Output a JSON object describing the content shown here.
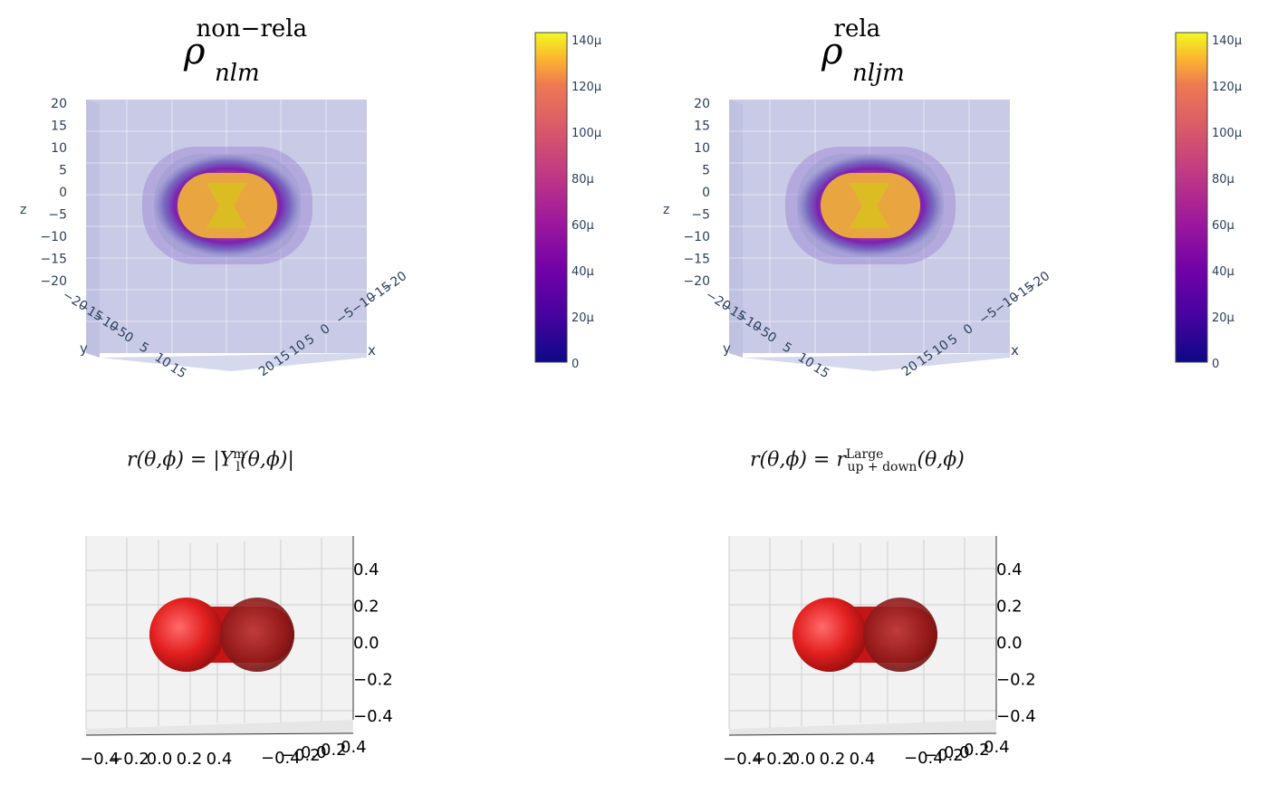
{
  "top_panels": [
    {
      "title_base": "ρ",
      "title_sup": "non−rela",
      "title_sub": "nlm",
      "formula": "r(θ,ϕ) = |Y",
      "formula_sup": "m",
      "formula_sub": "l",
      "formula_tail": "(θ,ϕ)|"
    },
    {
      "title_base": "ρ",
      "title_sup": "rela",
      "title_sub": "nljm",
      "formula": "r(θ,ϕ) = r",
      "formula_sup": "Large",
      "formula_sub": "up + down",
      "formula_tail": "(θ,ϕ)"
    }
  ],
  "chart_data": [
    {
      "type": "isosurface-3d",
      "title": "ρ^{non−rela}_{nlm}",
      "axes": {
        "x": {
          "label": "x",
          "ticks": [
            "−20",
            "−15",
            "−10",
            "−5",
            "0",
            "5",
            "10",
            "15",
            "20"
          ]
        },
        "y": {
          "label": "y",
          "ticks": [
            "−20",
            "−15",
            "−10",
            "−5",
            "0",
            "5",
            "10",
            "15"
          ]
        },
        "z": {
          "label": "z",
          "ticks": [
            "20",
            "15",
            "10",
            "5",
            "0",
            "−5",
            "−10",
            "−15",
            "−20"
          ],
          "range": [
            -20,
            20
          ]
        }
      },
      "colorbar": {
        "ticks": [
          "140μ",
          "120μ",
          "100μ",
          "80μ",
          "60μ",
          "40μ",
          "20μ",
          "0"
        ],
        "range": [
          0,
          0.00014
        ],
        "colorscale": "plasma"
      },
      "shape": "toroidal density with hourglass core"
    },
    {
      "type": "isosurface-3d",
      "title": "ρ^{rela}_{nljm}",
      "axes": {
        "x": {
          "label": "x",
          "ticks": [
            "−20",
            "−15",
            "−10",
            "−5",
            "0",
            "5",
            "10",
            "15",
            "20"
          ]
        },
        "y": {
          "label": "y",
          "ticks": [
            "−20",
            "−15",
            "−10",
            "−5",
            "0",
            "5",
            "10",
            "15"
          ]
        },
        "z": {
          "label": "z",
          "ticks": [
            "20",
            "15",
            "10",
            "5",
            "0",
            "−5",
            "−10",
            "−15",
            "−20"
          ],
          "range": [
            -20,
            20
          ]
        }
      },
      "colorbar": {
        "ticks": [
          "140μ",
          "120μ",
          "100μ",
          "80μ",
          "60μ",
          "40μ",
          "20μ",
          "0"
        ],
        "range": [
          0,
          0.00014
        ],
        "colorscale": "plasma"
      },
      "shape": "toroidal density with hourglass core"
    },
    {
      "type": "surface-3d",
      "title": "r(θ,ϕ) = |Y_l^m(θ,ϕ)|",
      "axes": {
        "x": {
          "ticks": [
            "−0.4",
            "−0.2",
            "0.0",
            "0.2",
            "0.4"
          ],
          "range": [
            -0.5,
            0.5
          ]
        },
        "y": {
          "ticks": [
            "−0.4",
            "−0.2",
            "0.0",
            "0.2",
            "0.4"
          ]
        },
        "z": {
          "ticks": [
            "0.4",
            "0.2",
            "0.0",
            "−0.2",
            "−0.4"
          ],
          "range": [
            -0.5,
            0.5
          ]
        }
      },
      "surface_color": "#e32020",
      "shape": "red torus seen edge-on"
    },
    {
      "type": "surface-3d",
      "title": "r(θ,ϕ) = r^{Large}_{up+down}(θ,ϕ)",
      "axes": {
        "x": {
          "ticks": [
            "−0.4",
            "−0.2",
            "0.0",
            "0.2",
            "0.4"
          ],
          "range": [
            -0.5,
            0.5
          ]
        },
        "y": {
          "ticks": [
            "−0.4",
            "−0.2",
            "0.0",
            "0.2",
            "0.4"
          ]
        },
        "z": {
          "ticks": [
            "0.4",
            "0.2",
            "0.0",
            "−0.2",
            "−0.4"
          ],
          "range": [
            -0.5,
            0.5
          ]
        }
      },
      "surface_color": "#e32020",
      "shape": "red torus seen edge-on"
    }
  ]
}
